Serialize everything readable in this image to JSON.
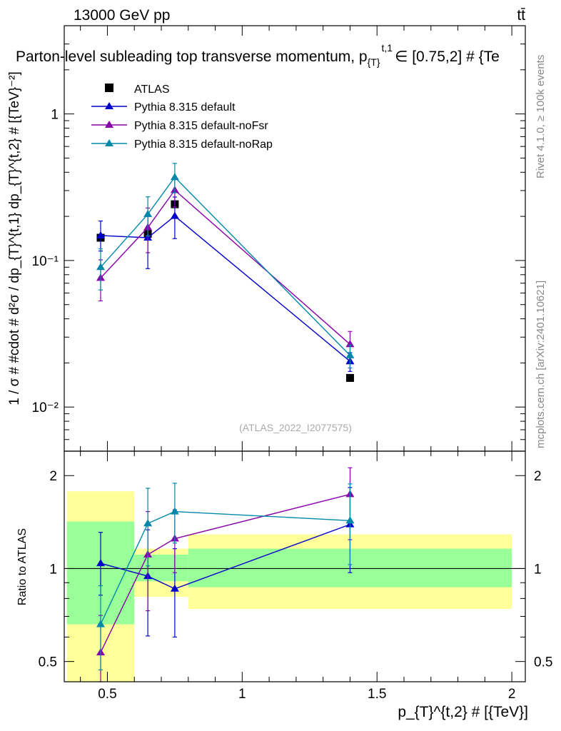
{
  "header": {
    "energy_label": "13000 GeV pp",
    "process_label": "tt̄",
    "title": "Parton-level subleading top transverse momentum, p",
    "title_sub": "{T}",
    "title_sup": "t,1",
    "title_tail": "∈ [0.75,2] # {Te",
    "side_rivet": "Rivet 4.1.0, ≥ 100k events",
    "side_mcplots": "mcplots.cern.ch [arXiv:2401.10621]",
    "watermark": "(ATLAS_2022_I2077575)"
  },
  "colors": {
    "atlas": "#000000",
    "default": "#0000cc",
    "noFsr": "#8800aa",
    "noRap": "#0088aa",
    "band_inner": "#99ff99",
    "band_outer": "#ffff99"
  },
  "chart_data": [
    {
      "type": "scatter",
      "yscale": "log",
      "ylabel": "1 / σ # #cdot # d²σ / dp_{T}^{t,1} dp_{T}^{t,2} # [{TeV}⁻²]",
      "xlim": [
        0.34,
        2.05
      ],
      "ylim": [
        0.005,
        4.0
      ],
      "y_ticks": [
        {
          "value": 0.01,
          "label": "10⁻²"
        },
        {
          "value": 0.1,
          "label": "10⁻¹"
        },
        {
          "value": 1,
          "label": "1"
        }
      ],
      "x": [
        0.475,
        0.65,
        0.75,
        1.4
      ],
      "series": [
        {
          "name": "ATLAS",
          "color_key": "atlas",
          "marker": "square",
          "connect": false,
          "values": [
            0.143,
            0.152,
            0.242,
            0.0158
          ],
          "err_lo": [
            0.0,
            0.0,
            0.0,
            0.0
          ],
          "err_hi": [
            0.0,
            0.0,
            0.0,
            0.0
          ]
        },
        {
          "name": "Pythia 8.315 default",
          "color_key": "default",
          "marker": "triangle",
          "connect": true,
          "values": [
            0.148,
            0.143,
            0.201,
            0.0205
          ],
          "err_lo": [
            0.032,
            0.055,
            0.06,
            0.003
          ],
          "err_hi": [
            0.038,
            0.06,
            0.07,
            0.003
          ]
        },
        {
          "name": "Pythia 8.315 default-noFsr",
          "color_key": "noFsr",
          "marker": "triangle",
          "connect": true,
          "values": [
            0.076,
            0.168,
            0.302,
            0.0268
          ],
          "err_lo": [
            0.023,
            0.055,
            0.07,
            0.005
          ],
          "err_hi": [
            0.025,
            0.06,
            0.07,
            0.006
          ]
        },
        {
          "name": "Pythia 8.315 default-noRap",
          "color_key": "noRap",
          "marker": "triangle",
          "connect": true,
          "values": [
            0.09,
            0.207,
            0.37,
            0.0225
          ],
          "err_lo": [
            0.027,
            0.06,
            0.08,
            0.004
          ],
          "err_hi": [
            0.03,
            0.065,
            0.09,
            0.004
          ]
        }
      ]
    },
    {
      "type": "scatter",
      "yscale": "log",
      "ylabel": "Ratio to ATLAS",
      "xlabel": "p_{T}^{t,2} # [{TeV}]",
      "xlim": [
        0.34,
        2.05
      ],
      "ylim": [
        0.43,
        2.4
      ],
      "x_ticks": [
        {
          "value": 0.5,
          "label": "0.5"
        },
        {
          "value": 1,
          "label": "1"
        },
        {
          "value": 1.5,
          "label": "1.5"
        },
        {
          "value": 2,
          "label": "2"
        }
      ],
      "y_ticks": [
        {
          "value": 0.5,
          "label": "0.5"
        },
        {
          "value": 1,
          "label": "1"
        },
        {
          "value": 2,
          "label": "2"
        }
      ],
      "bands": [
        {
          "x0": 0.35,
          "x1": 0.6,
          "outer": [
            0.43,
            1.78
          ],
          "inner": [
            0.66,
            1.42
          ]
        },
        {
          "x0": 0.6,
          "x1": 0.8,
          "outer": [
            0.81,
            1.16
          ],
          "inner": [
            0.91,
            1.11
          ]
        },
        {
          "x0": 0.8,
          "x1": 2.0,
          "outer": [
            0.74,
            1.29
          ],
          "inner": [
            0.87,
            1.16
          ]
        }
      ],
      "x": [
        0.475,
        0.65,
        0.75,
        1.4
      ],
      "series": [
        {
          "name": "Pythia 8.315 default",
          "color_key": "default",
          "values": [
            1.04,
            0.945,
            0.86,
            1.39
          ],
          "err_lo": [
            0.22,
            0.34,
            0.26,
            0.42
          ],
          "err_hi": [
            0.27,
            0.39,
            0.3,
            0.44
          ]
        },
        {
          "name": "Pythia 8.315 default-noFsr",
          "color_key": "noFsr",
          "values": [
            0.535,
            1.11,
            1.25,
            1.74
          ],
          "err_lo": [
            0.16,
            0.38,
            0.28,
            0.5
          ],
          "err_hi": [
            0.17,
            0.42,
            0.3,
            0.38
          ]
        },
        {
          "name": "Pythia 8.315 default-noRap",
          "color_key": "noRap",
          "values": [
            0.66,
            1.4,
            1.53,
            1.43
          ],
          "err_lo": [
            0.19,
            0.38,
            0.32,
            0.4
          ],
          "err_hi": [
            0.22,
            0.42,
            0.36,
            0.45
          ]
        }
      ]
    }
  ]
}
